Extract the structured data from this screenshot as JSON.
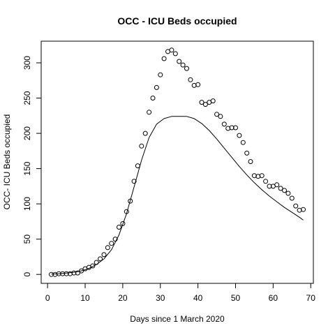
{
  "chart_data": {
    "type": "scatter",
    "title": "OCC - ICU Beds occupied",
    "xlabel": "Days since 1 March 2020",
    "ylabel": "OCC- ICU Beds occupied",
    "xlim": [
      -1.7,
      70.7
    ],
    "ylim": [
      -12.7,
      330.7
    ],
    "xticks": [
      0,
      10,
      20,
      30,
      40,
      50,
      60,
      70
    ],
    "yticks": [
      0,
      50,
      100,
      150,
      200,
      250,
      300
    ],
    "grid": false,
    "legend": "none",
    "series": [
      {
        "kind": "points",
        "marker": "open-circle",
        "x": [
          1,
          2,
          3,
          4,
          5,
          6,
          7,
          8,
          9,
          10,
          11,
          12,
          13,
          14,
          15,
          16,
          17,
          18,
          19,
          20,
          21,
          22,
          23,
          24,
          25,
          26,
          27,
          28,
          29,
          30,
          31,
          32,
          33,
          34,
          35,
          36,
          37,
          38,
          39,
          40,
          41,
          42,
          43,
          44,
          45,
          46,
          47,
          48,
          49,
          50,
          51,
          52,
          53,
          54,
          55,
          56,
          57,
          58,
          59,
          60,
          61,
          62,
          63,
          64,
          65,
          66,
          67,
          68
        ],
        "y": [
          0,
          0,
          1,
          1,
          1,
          1,
          2,
          2,
          5,
          8,
          10,
          12,
          17,
          22,
          28,
          38,
          44,
          50,
          67,
          72,
          89,
          104,
          132,
          154,
          182,
          200,
          230,
          250,
          265,
          283,
          306,
          316,
          318,
          313,
          302,
          297,
          292,
          276,
          268,
          269,
          244,
          241,
          244,
          246,
          227,
          224,
          213,
          207,
          208,
          208,
          197,
          187,
          172,
          160,
          140,
          139,
          140,
          132,
          125,
          125,
          127,
          122,
          119,
          115,
          108,
          97,
          91,
          92
        ]
      },
      {
        "kind": "line",
        "x": [
          1,
          3,
          5,
          7,
          9,
          11,
          13,
          15,
          17,
          19,
          21,
          23,
          25,
          27,
          29,
          31,
          33,
          35,
          37,
          39,
          41,
          43,
          45,
          47,
          49,
          51,
          53,
          55,
          57,
          59,
          61,
          63,
          65,
          67,
          68
        ],
        "y": [
          0.5,
          1,
          1.8,
          3,
          5,
          8.5,
          14,
          22,
          35,
          56,
          86,
          124,
          162,
          194,
          213,
          221,
          224,
          224,
          224,
          221,
          214,
          204,
          192,
          179,
          166,
          153,
          141,
          130,
          120,
          111,
          103,
          95,
          88,
          81,
          77
        ]
      }
    ]
  }
}
